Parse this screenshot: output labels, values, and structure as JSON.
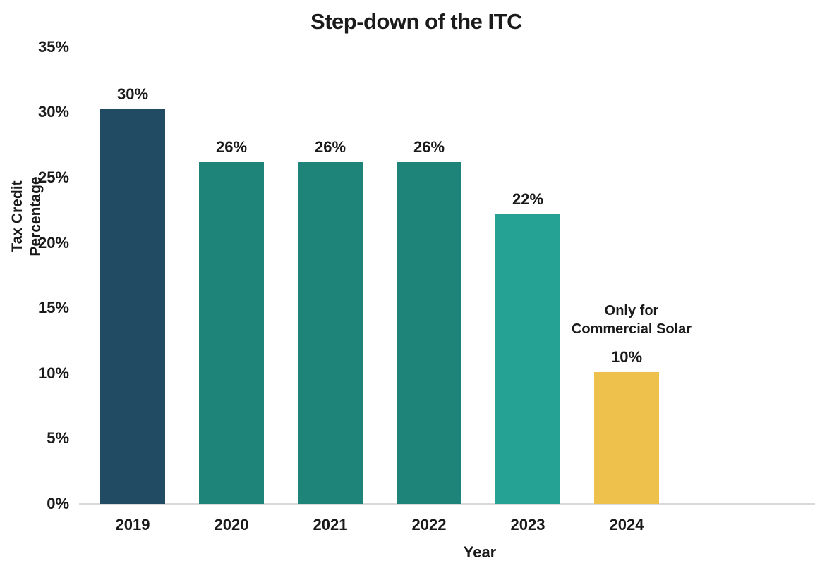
{
  "title": "Step-down of the ITC",
  "chart_data": {
    "type": "bar",
    "title": "Step-down of the ITC",
    "xlabel": "Year",
    "ylabel": "Tax Credit Percentage",
    "categories": [
      "2019",
      "2020",
      "2021",
      "2022",
      "2023",
      "2024"
    ],
    "values": [
      30,
      26,
      26,
      26,
      22,
      10
    ],
    "bar_labels": [
      "30%",
      "26%",
      "26%",
      "26%",
      "22%",
      "10%"
    ],
    "bar_colors": [
      "#214a63",
      "#1e8378",
      "#1e8378",
      "#1e8378",
      "#26a295",
      "#edc14b"
    ],
    "ylim": [
      0,
      35
    ],
    "ytick_step": 5,
    "yticks": [
      "0%",
      "5%",
      "10%",
      "15%",
      "20%",
      "25%",
      "30%",
      "35%"
    ],
    "grid": false,
    "legend": null,
    "annotation": {
      "lines": [
        "Only for",
        "Commercial Solar"
      ],
      "target_category": "2024"
    }
  },
  "colors": {
    "axis_line": "#d9d9d9",
    "text": "#1a1a1a",
    "background": "#ffffff"
  }
}
